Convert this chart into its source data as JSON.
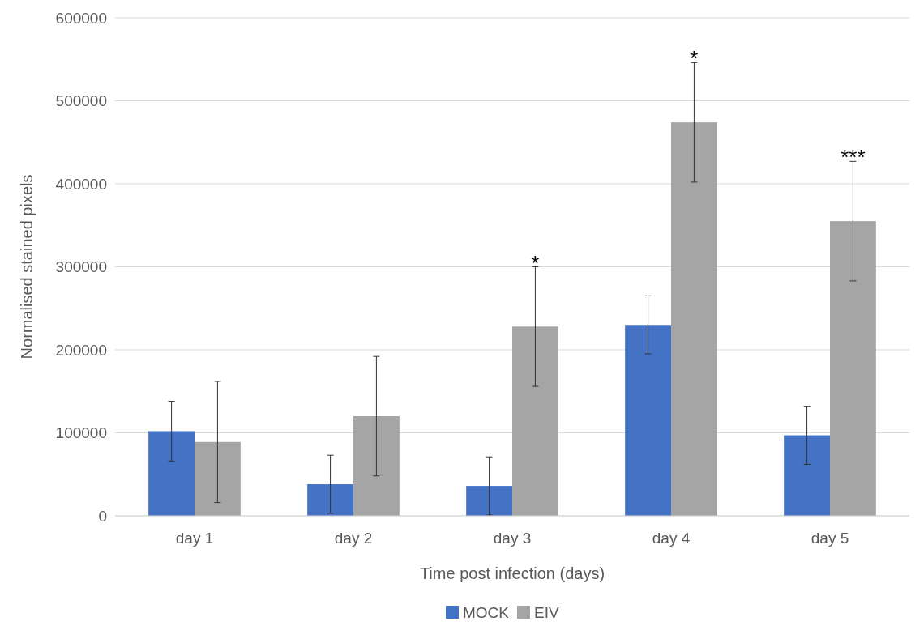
{
  "chart_data": {
    "type": "bar",
    "xlabel": "Time post infection (days)",
    "ylabel": "Normalised stained pixels",
    "categories": [
      "day 1",
      "day 2",
      "day 3",
      "day 4",
      "day 5"
    ],
    "series": [
      {
        "name": "MOCK",
        "color": "#4472c4",
        "values": [
          102000,
          38000,
          36000,
          230000,
          97000
        ],
        "errors": [
          36000,
          35000,
          35000,
          35000,
          35000
        ]
      },
      {
        "name": "EIV",
        "color": "#a5a5a5",
        "values": [
          89000,
          120000,
          228000,
          474000,
          355000
        ],
        "errors": [
          73000,
          72000,
          72000,
          72000,
          72000
        ]
      }
    ],
    "ylim": [
      0,
      600000
    ],
    "yticks": [
      0,
      100000,
      200000,
      300000,
      400000,
      500000,
      600000
    ],
    "grid": "y",
    "legend": "bottom",
    "annotations": [
      {
        "text": "*",
        "x": "day 3",
        "y": 228000
      },
      {
        "text": "*",
        "x": "day 4",
        "y": 474000
      },
      {
        "text": "***",
        "x": "day 5",
        "y": 355000
      }
    ]
  }
}
